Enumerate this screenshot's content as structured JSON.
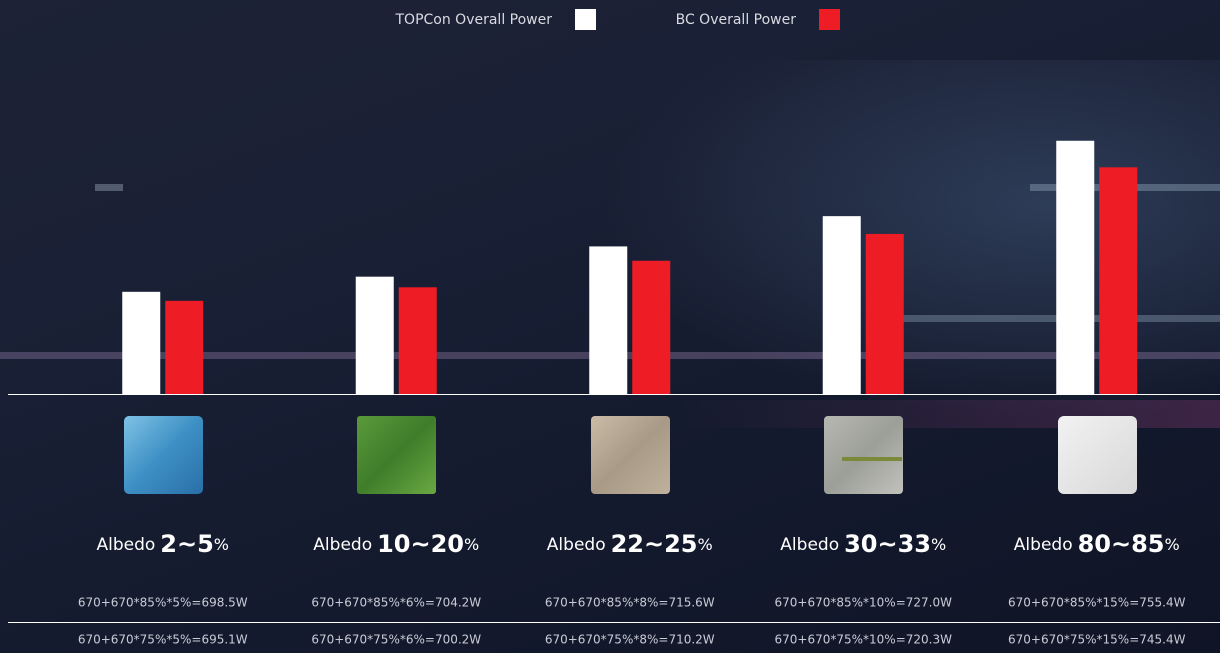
{
  "chart_data": {
    "type": "bar",
    "categories": [
      "2~5",
      "10~20",
      "22~25",
      "30~33",
      "80~85"
    ],
    "category_prefix": "Albedo",
    "category_suffix": "%",
    "series": [
      {
        "name": "TOPCon Overall Power",
        "color": "#ffffff",
        "values": [
          698.5,
          704.2,
          715.6,
          727.0,
          755.4
        ],
        "value_labels": [
          "670+670*85%*5%=698.5W",
          "670+670*85%*6%=704.2W",
          "670+670*85%*8%=715.6W",
          "670+670*85%*10%=727.0W",
          "670+670*85%*15%=755.4W"
        ]
      },
      {
        "name": "BC Overall Power",
        "color": "#ee1c25",
        "values": [
          695.1,
          700.2,
          710.2,
          720.3,
          745.4
        ],
        "value_labels": [
          "670+670*75%*5%=695.1W",
          "670+670*75%*6%=700.2W",
          "670+670*75%*8%=710.2W",
          "670+670*75%*10%=720.3W",
          "670+670*75%*15%=745.4W"
        ]
      }
    ],
    "ylim": [
      660,
      770
    ],
    "legend": "top"
  }
}
